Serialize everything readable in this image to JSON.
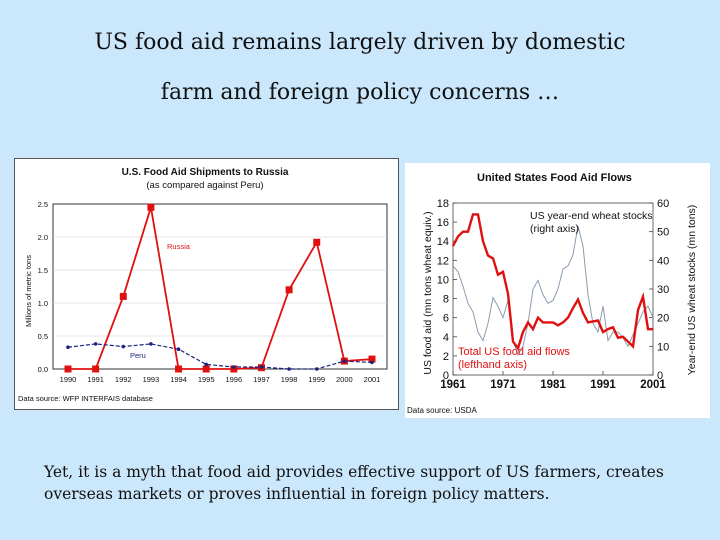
{
  "page": {
    "title_line1": "US food aid remains largely driven by domestic",
    "title_line2": "farm and foreign policy concerns …",
    "caption": "Yet, it is a myth that food aid provides effective support of US farmers, creates overseas markets or proves influential in foreign policy matters."
  },
  "colors": {
    "background": "#cbe7fb",
    "red": "#e01010",
    "navy": "#1a237e",
    "grey_line": "#8a9cb0"
  },
  "chart_data": [
    {
      "type": "line",
      "title": "U.S. Food Aid Shipments to Russia",
      "subtitle": "(as compared against Peru)",
      "ylabel": "Millions of metric tons",
      "xlabel": "",
      "categories": [
        "1990",
        "1991",
        "1992",
        "1993",
        "1994",
        "1995",
        "1996",
        "1997",
        "1998",
        "1999",
        "2000",
        "2001"
      ],
      "ylim": [
        0,
        2.5
      ],
      "yticks": [
        "0.0",
        "0.5",
        "1.0",
        "1.5",
        "2.0",
        "2.5"
      ],
      "series": [
        {
          "name": "Russia",
          "values": [
            0.0,
            0.0,
            1.1,
            2.45,
            0.0,
            0.0,
            0.0,
            0.02,
            1.2,
            1.92,
            0.12,
            0.15
          ]
        },
        {
          "name": "Peru",
          "values": [
            0.33,
            0.38,
            0.34,
            0.38,
            0.3,
            0.07,
            0.03,
            0.03,
            0.0,
            0.0,
            0.12,
            0.1
          ]
        }
      ],
      "source": "Data source: WFP INTERFAIS database"
    },
    {
      "type": "line",
      "title": "United States Food Aid Flows",
      "x_ticks": [
        "1961",
        "1971",
        "1981",
        "1991",
        "2001"
      ],
      "xlim": [
        1961,
        2001
      ],
      "y_left": {
        "label": "US food aid (mn tons wheat equiv.)",
        "ylim": [
          0,
          18
        ],
        "ticks": [
          "0",
          "2",
          "4",
          "6",
          "8",
          "10",
          "12",
          "14",
          "16",
          "18"
        ]
      },
      "y_right": {
        "label": "Year-end US wheat stocks (mn tons)",
        "ylim": [
          0,
          60
        ],
        "ticks": [
          "0",
          "10",
          "20",
          "30",
          "40",
          "50",
          "60"
        ]
      },
      "series": [
        {
          "name": "Total US food aid flows",
          "legend": [
            "Total US food aid flows",
            "(lefthand axis)"
          ],
          "axis": "left",
          "x": [
            1961,
            1962,
            1963,
            1964,
            1965,
            1966,
            1967,
            1968,
            1969,
            1970,
            1971,
            1972,
            1973,
            1974,
            1975,
            1976,
            1977,
            1978,
            1979,
            1980,
            1981,
            1982,
            1983,
            1984,
            1985,
            1986,
            1987,
            1988,
            1989,
            1990,
            1991,
            1992,
            1993,
            1994,
            1995,
            1996,
            1997,
            1998,
            1999,
            2000,
            2001
          ],
          "values": [
            13.5,
            14.5,
            15,
            15,
            16.8,
            16.8,
            14,
            12.5,
            12.2,
            10.5,
            10.8,
            8.5,
            3.5,
            2.8,
            4.5,
            5.5,
            4.8,
            6,
            5.5,
            5.5,
            5.5,
            5.2,
            5.5,
            6,
            7,
            7.9,
            6.5,
            5.5,
            5.6,
            5.7,
            4.5,
            4.8,
            5,
            3.9,
            4,
            3.5,
            3,
            6.8,
            8.2,
            4.8,
            4.8
          ]
        },
        {
          "name": "US year-end wheat stocks",
          "legend": [
            "US year-end wheat stocks",
            "(right axis)"
          ],
          "axis": "right",
          "x": [
            1961,
            1962,
            1963,
            1964,
            1965,
            1966,
            1967,
            1968,
            1969,
            1970,
            1971,
            1972,
            1973,
            1974,
            1975,
            1976,
            1977,
            1978,
            1979,
            1980,
            1981,
            1982,
            1983,
            1984,
            1985,
            1986,
            1987,
            1988,
            1989,
            1990,
            1991,
            1992,
            1993,
            1994,
            1995,
            1996,
            1997,
            1998,
            1999,
            2000,
            2001
          ],
          "values": [
            38,
            36,
            31,
            25,
            22,
            15,
            12,
            18,
            27,
            24,
            20,
            26,
            12,
            7,
            10,
            18,
            30,
            33,
            28,
            25,
            26,
            30,
            37,
            38,
            42,
            52,
            45,
            28,
            18,
            15,
            24,
            12,
            15,
            15,
            13,
            10,
            14,
            18,
            22,
            24,
            20
          ]
        }
      ],
      "source": "Data source: USDA"
    }
  ]
}
